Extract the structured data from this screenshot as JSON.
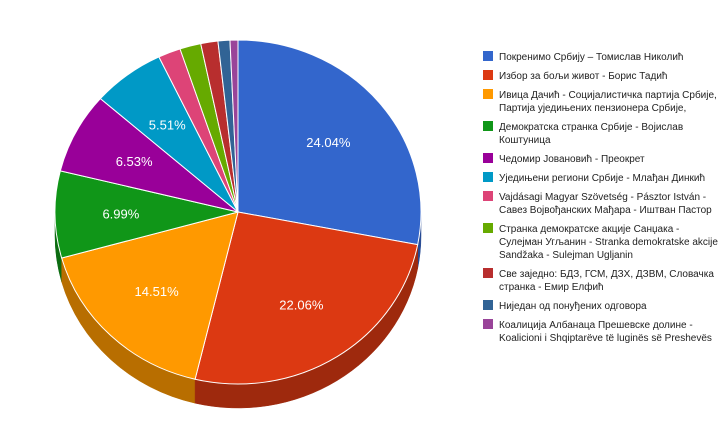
{
  "chart_data": {
    "type": "pie",
    "style": "3d",
    "legend_position": "right",
    "slices": [
      {
        "label": "Покренимо Србију – Томислав Николић",
        "value": 24.04,
        "value_label": "24.04%",
        "color": "#3366cc"
      },
      {
        "label": "Избор за бољи живот - Борис Тадић",
        "value": 22.06,
        "value_label": "22.06%",
        "color": "#dc3912"
      },
      {
        "label": "Ивица Дачић - Социјалистичка партија Србије, Партија уједињених пензионера Србије,",
        "value": 14.51,
        "value_label": "14.51%",
        "color": "#ff9900"
      },
      {
        "label": "Демократска странка Србије - Војислав Коштуница",
        "value": 6.99,
        "value_label": "6.99%",
        "color": "#109618"
      },
      {
        "label": "Чедомир Јовановић - Преокрет",
        "value": 6.53,
        "value_label": "6.53%",
        "color": "#990099"
      },
      {
        "label": "Уједињени региони Србије - Млађан Динкић",
        "value": 5.51,
        "value_label": "5.51%",
        "color": "#0099c6"
      },
      {
        "label": "Vajdásagi Magyar Szövetség - Pásztor István - Савез Војвођанских Мађара - Иштван Пастор",
        "value": 1.7,
        "value_label": "",
        "color": "#dd4477"
      },
      {
        "label": "Странка демократске акције Санџака - Сулејман Угљанин - Stranka demokratske akcije Sandžaka - Sulejman Ugljanin",
        "value": 1.6,
        "value_label": "",
        "color": "#66aa00"
      },
      {
        "label": "Све заједно: БДЗ, ГСМ, ДЗХ, ДЗВМ, Словачка странка - Емир Елфић",
        "value": 1.3,
        "value_label": "",
        "color": "#b82e2e"
      },
      {
        "label": "Ниједан од понуђених одговора",
        "value": 0.9,
        "value_label": "",
        "color": "#316395"
      },
      {
        "label": "Коалиција Албанаца Прешевске долине - Koalicioni i Shqiptarëve të luginës së Preshevës",
        "value": 0.6,
        "value_label": "",
        "color": "#994499"
      }
    ],
    "legend_lines": [
      [
        "Покренимо Србију – Томислав Николић"
      ],
      [
        "Избор за бољи живот - Борис Тадић"
      ],
      [
        "Ивица Дачић - Социјалистичка партија Србије,",
        "Партија уједињених пензионера Србије,"
      ],
      [
        "Демократска странка Србије - Војислав",
        "Коштуница"
      ],
      [
        "Чедомир Јовановић - Преокрет"
      ],
      [
        "Уједињени региони Србије - Млађан Динкић"
      ],
      [
        "Vajdásagi Magyar Szövetség - Pásztor István -",
        "Савез Војвођанских Мађара - Иштван Пастор"
      ],
      [
        "Странка демократске акције Санџака -",
        "Сулејман Угљанин - Stranka demokratske akcije",
        "Sandžaka - Sulejman Ugljanin"
      ],
      [
        "Све заједно: БДЗ, ГСМ, ДЗХ, ДЗВМ, Словачка",
        "странка - Емир Елфић"
      ],
      [
        "Ниједан од понуђених одговора"
      ],
      [
        "Коалиција Албанаца Прешевске долине -",
        "Koalicioni i Shqiptarëve të luginës së Preshevës"
      ]
    ]
  }
}
